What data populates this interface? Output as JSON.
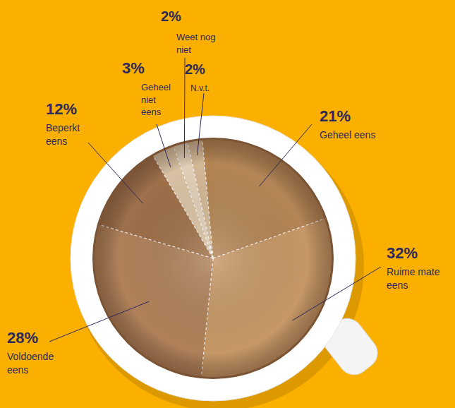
{
  "chart_data": {
    "type": "pie",
    "categories": [
      "Geheel eens",
      "Ruime mate eens",
      "Voldoende eens",
      "Beperkt eens",
      "Geheel niet eens",
      "Weet nog niet",
      "N.v.t."
    ],
    "values": [
      21,
      32,
      28,
      12,
      3,
      2,
      2
    ],
    "value_labels": [
      "21%",
      "32%",
      "28%",
      "12%",
      "3%",
      "2%",
      "2%"
    ],
    "colors": [
      "#b48657",
      "#c69868",
      "#b0815a",
      "#9e704b",
      "#d9c2a6",
      "#e2d0b9",
      "#d3b896"
    ],
    "data_labels": true
  }
}
